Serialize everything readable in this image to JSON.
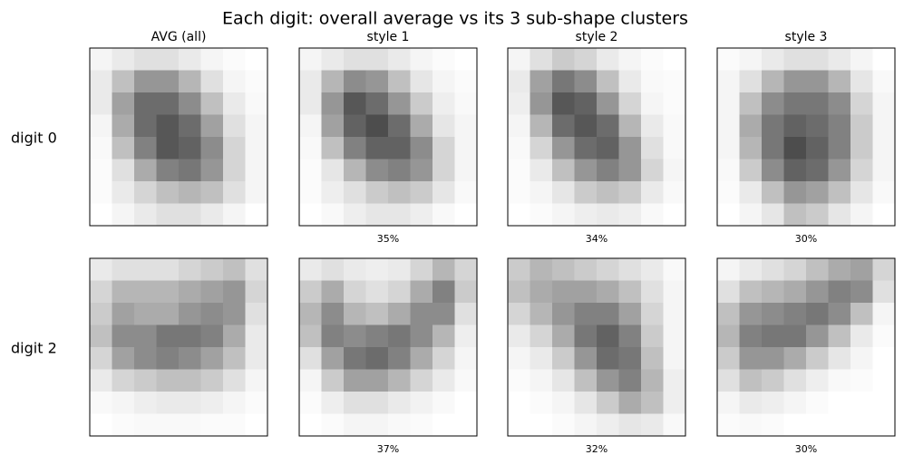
{
  "chart_data": {
    "type": "image_grid",
    "title": "Each digit: overall average vs its 3 sub-shape clusters",
    "columns": [
      "AVG (all)",
      "style 1",
      "style 2",
      "style 3"
    ],
    "rows": [
      {
        "label": "digit 0",
        "panels": [
          {
            "pixels": [
              [
                0.05,
                0.1,
                0.15,
                0.15,
                0.1,
                0.05,
                0.02,
                0
              ],
              [
                0.1,
                0.3,
                0.5,
                0.5,
                0.35,
                0.15,
                0.05,
                0.02
              ],
              [
                0.1,
                0.45,
                0.7,
                0.7,
                0.55,
                0.3,
                0.1,
                0.03
              ],
              [
                0.05,
                0.4,
                0.7,
                0.8,
                0.7,
                0.45,
                0.15,
                0.05
              ],
              [
                0.03,
                0.3,
                0.6,
                0.8,
                0.75,
                0.55,
                0.2,
                0.05
              ],
              [
                0.02,
                0.15,
                0.4,
                0.6,
                0.65,
                0.5,
                0.2,
                0.05
              ],
              [
                0.02,
                0.1,
                0.2,
                0.3,
                0.35,
                0.3,
                0.15,
                0.05
              ],
              [
                0,
                0.05,
                0.1,
                0.15,
                0.15,
                0.1,
                0.05,
                0
              ]
            ]
          },
          {
            "caption": "35%",
            "pixels": [
              [
                0.05,
                0.1,
                0.15,
                0.15,
                0.1,
                0.05,
                0.02,
                0
              ],
              [
                0.1,
                0.35,
                0.55,
                0.5,
                0.3,
                0.12,
                0.05,
                0.02
              ],
              [
                0.1,
                0.5,
                0.8,
                0.7,
                0.5,
                0.25,
                0.08,
                0.03
              ],
              [
                0.05,
                0.45,
                0.75,
                0.85,
                0.7,
                0.4,
                0.12,
                0.05
              ],
              [
                0.03,
                0.3,
                0.6,
                0.75,
                0.75,
                0.55,
                0.2,
                0.05
              ],
              [
                0.02,
                0.12,
                0.35,
                0.55,
                0.6,
                0.5,
                0.2,
                0.05
              ],
              [
                0.02,
                0.08,
                0.15,
                0.25,
                0.3,
                0.25,
                0.12,
                0.03
              ],
              [
                0,
                0.03,
                0.08,
                0.12,
                0.12,
                0.08,
                0.03,
                0
              ]
            ]
          },
          {
            "caption": "34%",
            "pixels": [
              [
                0.05,
                0.15,
                0.25,
                0.2,
                0.1,
                0.05,
                0.02,
                0
              ],
              [
                0.1,
                0.45,
                0.65,
                0.55,
                0.3,
                0.1,
                0.03,
                0.02
              ],
              [
                0.08,
                0.5,
                0.8,
                0.75,
                0.5,
                0.2,
                0.05,
                0.02
              ],
              [
                0.05,
                0.35,
                0.7,
                0.8,
                0.7,
                0.35,
                0.1,
                0.03
              ],
              [
                0.03,
                0.2,
                0.5,
                0.7,
                0.75,
                0.5,
                0.15,
                0.03
              ],
              [
                0.02,
                0.1,
                0.3,
                0.5,
                0.6,
                0.5,
                0.2,
                0.05
              ],
              [
                0.02,
                0.05,
                0.12,
                0.25,
                0.3,
                0.25,
                0.1,
                0.03
              ],
              [
                0,
                0.02,
                0.05,
                0.08,
                0.1,
                0.08,
                0.03,
                0
              ]
            ]
          },
          {
            "caption": "30%",
            "pixels": [
              [
                0.02,
                0.05,
                0.1,
                0.15,
                0.15,
                0.1,
                0.05,
                0
              ],
              [
                0.05,
                0.15,
                0.35,
                0.5,
                0.5,
                0.35,
                0.12,
                0.03
              ],
              [
                0.05,
                0.3,
                0.55,
                0.65,
                0.65,
                0.55,
                0.2,
                0.05
              ],
              [
                0.05,
                0.4,
                0.65,
                0.75,
                0.7,
                0.6,
                0.25,
                0.05
              ],
              [
                0.05,
                0.35,
                0.65,
                0.85,
                0.75,
                0.6,
                0.25,
                0.05
              ],
              [
                0.03,
                0.25,
                0.55,
                0.75,
                0.7,
                0.5,
                0.2,
                0.05
              ],
              [
                0.02,
                0.1,
                0.3,
                0.5,
                0.45,
                0.3,
                0.12,
                0.03
              ],
              [
                0,
                0.05,
                0.12,
                0.3,
                0.25,
                0.12,
                0.05,
                0
              ]
            ]
          }
        ]
      },
      {
        "label": "digit 2",
        "panels": [
          {
            "pixels": [
              [
                0.1,
                0.15,
                0.15,
                0.15,
                0.2,
                0.25,
                0.3,
                0.15
              ],
              [
                0.2,
                0.35,
                0.35,
                0.35,
                0.4,
                0.45,
                0.5,
                0.2
              ],
              [
                0.25,
                0.45,
                0.4,
                0.4,
                0.5,
                0.55,
                0.5,
                0.15
              ],
              [
                0.3,
                0.55,
                0.55,
                0.65,
                0.65,
                0.6,
                0.4,
                0.1
              ],
              [
                0.2,
                0.45,
                0.55,
                0.6,
                0.55,
                0.45,
                0.3,
                0.1
              ],
              [
                0.1,
                0.2,
                0.25,
                0.3,
                0.3,
                0.25,
                0.15,
                0.05
              ],
              [
                0.03,
                0.05,
                0.08,
                0.1,
                0.1,
                0.08,
                0.05,
                0.02
              ],
              [
                0,
                0.02,
                0.03,
                0.03,
                0.03,
                0.02,
                0.02,
                0
              ]
            ]
          },
          {
            "caption": "37%",
            "pixels": [
              [
                0.1,
                0.15,
                0.1,
                0.08,
                0.1,
                0.2,
                0.35,
                0.2
              ],
              [
                0.25,
                0.4,
                0.2,
                0.15,
                0.2,
                0.4,
                0.6,
                0.25
              ],
              [
                0.35,
                0.55,
                0.35,
                0.3,
                0.4,
                0.55,
                0.55,
                0.15
              ],
              [
                0.3,
                0.6,
                0.55,
                0.6,
                0.65,
                0.55,
                0.35,
                0.08
              ],
              [
                0.15,
                0.45,
                0.65,
                0.7,
                0.6,
                0.4,
                0.2,
                0.05
              ],
              [
                0.05,
                0.25,
                0.45,
                0.45,
                0.35,
                0.2,
                0.1,
                0.03
              ],
              [
                0.02,
                0.08,
                0.15,
                0.15,
                0.1,
                0.06,
                0.03,
                0
              ],
              [
                0,
                0.02,
                0.05,
                0.05,
                0.03,
                0.02,
                0,
                0
              ]
            ]
          },
          {
            "caption": "32%",
            "pixels": [
              [
                0.25,
                0.35,
                0.3,
                0.25,
                0.2,
                0.15,
                0.1,
                0.03
              ],
              [
                0.3,
                0.4,
                0.45,
                0.45,
                0.4,
                0.3,
                0.15,
                0.05
              ],
              [
                0.2,
                0.35,
                0.5,
                0.6,
                0.6,
                0.45,
                0.2,
                0.05
              ],
              [
                0.1,
                0.2,
                0.4,
                0.65,
                0.75,
                0.6,
                0.25,
                0.05
              ],
              [
                0.05,
                0.1,
                0.25,
                0.5,
                0.7,
                0.65,
                0.3,
                0.05
              ],
              [
                0.02,
                0.05,
                0.12,
                0.3,
                0.5,
                0.6,
                0.35,
                0.08
              ],
              [
                0,
                0.02,
                0.05,
                0.12,
                0.25,
                0.4,
                0.3,
                0.08
              ],
              [
                0,
                0,
                0.02,
                0.05,
                0.08,
                0.12,
                0.1,
                0.03
              ]
            ]
          },
          {
            "caption": "30%",
            "pixels": [
              [
                0.05,
                0.1,
                0.15,
                0.2,
                0.3,
                0.4,
                0.45,
                0.2
              ],
              [
                0.15,
                0.3,
                0.35,
                0.4,
                0.5,
                0.6,
                0.55,
                0.15
              ],
              [
                0.3,
                0.5,
                0.55,
                0.6,
                0.65,
                0.55,
                0.3,
                0.05
              ],
              [
                0.35,
                0.6,
                0.65,
                0.65,
                0.5,
                0.3,
                0.1,
                0.02
              ],
              [
                0.25,
                0.5,
                0.5,
                0.4,
                0.25,
                0.12,
                0.05,
                0
              ],
              [
                0.15,
                0.3,
                0.25,
                0.15,
                0.08,
                0.03,
                0.02,
                0
              ],
              [
                0.05,
                0.1,
                0.08,
                0.05,
                0.02,
                0,
                0,
                0
              ],
              [
                0.02,
                0.03,
                0.02,
                0,
                0,
                0,
                0,
                0
              ]
            ]
          }
        ]
      }
    ]
  }
}
